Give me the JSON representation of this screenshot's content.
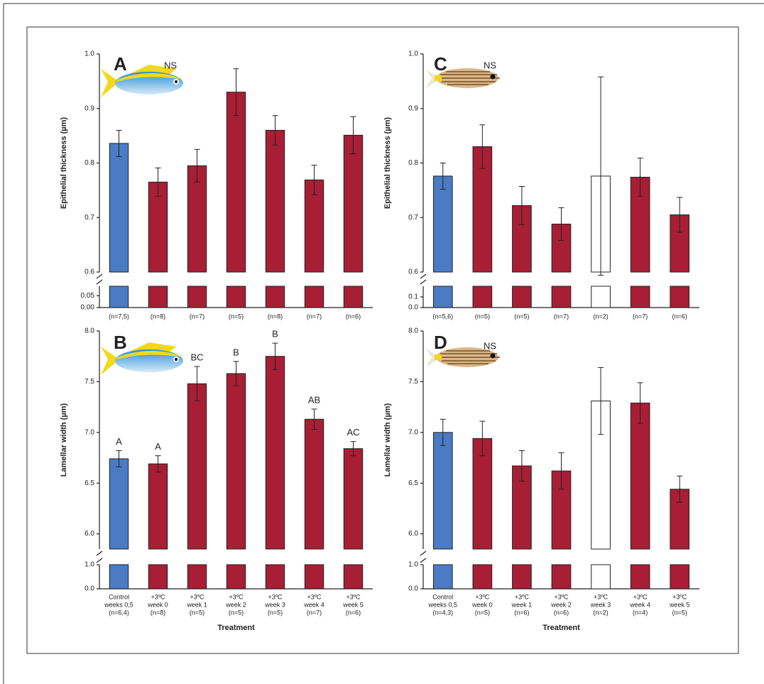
{
  "chart_data": [
    {
      "type": "bar",
      "panel_label": "A",
      "annotation": "NS",
      "ylabel": "Epithelial thickness (µm)",
      "values": [
        0.836,
        0.765,
        0.795,
        0.93,
        0.86,
        0.769,
        0.851
      ],
      "errors": [
        0.024,
        0.026,
        0.03,
        0.043,
        0.027,
        0.027,
        0.034
      ],
      "colors": [
        "#4a7bc4",
        "#a81e34",
        "#a81e34",
        "#a81e34",
        "#a81e34",
        "#a81e34",
        "#a81e34"
      ],
      "n_labels": [
        "(n=7,5)",
        "(n=8)",
        "(n=7)",
        "(n=5)",
        "(n=8)",
        "(n=7)",
        "(n=6)"
      ],
      "ylim": [
        0.6,
        1.0
      ],
      "yticks": [
        0.6,
        0.7,
        0.8,
        0.9,
        {
          "value": 1,
          "label": "1.0"
        }
      ],
      "lower_ylim": [
        0,
        0.09
      ],
      "lower_yticks": [
        {
          "value": 0,
          "label": "0.00"
        },
        0.05
      ]
    },
    {
      "type": "bar",
      "panel_label": "B",
      "ylabel": "Lamellar width (µm)",
      "xlabel": "Treatment",
      "categories": [
        [
          "Control",
          "weeks 0,5"
        ],
        [
          "+3ºC",
          "week 0"
        ],
        [
          "+3ºC",
          "week 1"
        ],
        [
          "+3ºC",
          "week 2"
        ],
        [
          "+3ºC",
          "week 3"
        ],
        [
          "+3ºC",
          "week 4"
        ],
        [
          "+3ºC",
          "week 5"
        ]
      ],
      "values": [
        6.74,
        6.69,
        7.48,
        7.58,
        7.75,
        7.13,
        6.84
      ],
      "errors": [
        0.08,
        0.08,
        0.17,
        0.12,
        0.13,
        0.1,
        0.07
      ],
      "letters": [
        "A",
        "A",
        "BC",
        "B",
        "B",
        "AB",
        "AC"
      ],
      "colors": [
        "#4a7bc4",
        "#a81e34",
        "#a81e34",
        "#a81e34",
        "#a81e34",
        "#a81e34",
        "#a81e34"
      ],
      "n_labels": [
        "(n=6,4)",
        "(n=8)",
        "(n=5)",
        "(n=5)",
        "(n=5)",
        "(n=7)",
        "(n=6)"
      ],
      "ylim": [
        5.85,
        8.0
      ],
      "yticks": [
        {
          "value": 6,
          "label": "6.0"
        },
        6.5,
        {
          "value": 7,
          "label": "7.0"
        },
        7.5,
        {
          "value": 8,
          "label": "8.0"
        }
      ],
      "lower_ylim": [
        0,
        1.0
      ],
      "lower_yticks": [
        {
          "value": 0,
          "label": "0.0"
        },
        {
          "value": 1,
          "label": "1.0"
        }
      ]
    },
    {
      "type": "bar",
      "panel_label": "C",
      "annotation": "NS",
      "ylabel": "Epithelial thickness (µm)",
      "values": [
        0.776,
        0.83,
        0.722,
        0.688,
        0.776,
        0.774,
        0.705
      ],
      "errors": [
        0.024,
        0.04,
        0.035,
        0.03,
        0.182,
        0.035,
        0.032
      ],
      "colors": [
        "#4a7bc4",
        "#a81e34",
        "#a81e34",
        "#a81e34",
        "#ffffff",
        "#a81e34",
        "#a81e34"
      ],
      "n_labels": [
        "(n=5,6)",
        "(n=5)",
        "(n=5)",
        "(n=7)",
        "(n=2)",
        "(n=7)",
        "(n=6)"
      ],
      "ylim": [
        0.6,
        1.0
      ],
      "yticks": [
        0.6,
        0.7,
        0.8,
        0.9,
        {
          "value": 1,
          "label": "1.0"
        }
      ],
      "lower_ylim": [
        0,
        0.2
      ],
      "lower_yticks": [
        {
          "value": 0,
          "label": "0.0"
        },
        0.1
      ]
    },
    {
      "type": "bar",
      "panel_label": "D",
      "annotation": "NS",
      "ylabel": "Lamellar width (µm)",
      "xlabel": "Treatment",
      "categories": [
        [
          "Control",
          "weeks 0,5"
        ],
        [
          "+3ºC",
          "week 0"
        ],
        [
          "+3ºC",
          "week 1"
        ],
        [
          "+3ºC",
          "week 2"
        ],
        [
          "+3ºC",
          "week 3"
        ],
        [
          "+3ºC",
          "week 4"
        ],
        [
          "+3ºC",
          "week 5"
        ]
      ],
      "values": [
        7.0,
        6.94,
        6.67,
        6.62,
        7.31,
        7.29,
        6.44
      ],
      "errors": [
        0.13,
        0.17,
        0.15,
        0.18,
        0.33,
        0.2,
        0.13
      ],
      "colors": [
        "#4a7bc4",
        "#a81e34",
        "#a81e34",
        "#a81e34",
        "#ffffff",
        "#a81e34",
        "#a81e34"
      ],
      "n_labels": [
        "(n=4,3)",
        "(n=5)",
        "(n=6)",
        "(n=6)",
        "(n=2)",
        "(n=4)",
        "(n=5)"
      ],
      "ylim": [
        5.85,
        8.0
      ],
      "yticks": [
        {
          "value": 6,
          "label": "6.0"
        },
        6.5,
        {
          "value": 7,
          "label": "7.0"
        },
        7.5,
        {
          "value": 8,
          "label": "8.0"
        }
      ],
      "lower_ylim": [
        0,
        1.0
      ],
      "lower_yticks": [
        {
          "value": 0,
          "label": "0.0"
        },
        {
          "value": 1,
          "label": "1.0"
        }
      ]
    }
  ]
}
